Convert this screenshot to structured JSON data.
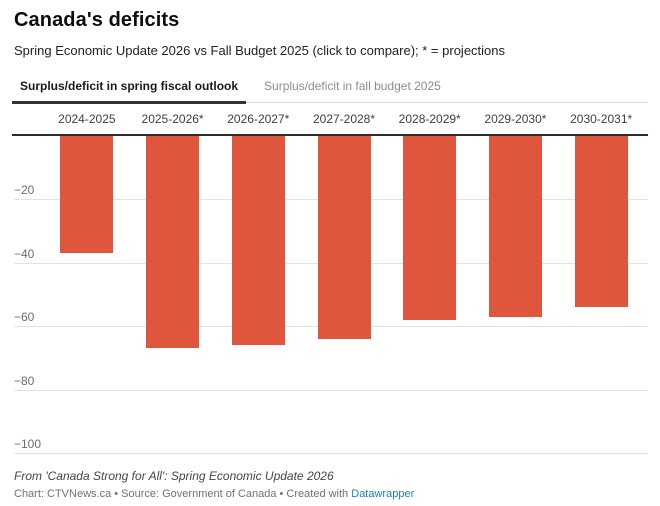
{
  "header": {
    "title": "Canada's deficits",
    "subtitle": "Spring Economic Update 2026 vs Fall Budget 2025 (click to compare); * = projections"
  },
  "tabs": [
    {
      "label": "Surplus/deficit in spring fiscal outlook",
      "active": true
    },
    {
      "label": "Surplus/deficit in fall budget 2025",
      "active": false
    }
  ],
  "chart_data": {
    "type": "bar",
    "title": "Canada's deficits",
    "subtitle": "Spring Economic Update 2026 vs Fall Budget 2025 (click to compare); * = projections",
    "series_label": "Surplus/deficit in spring fiscal outlook",
    "categories": [
      "2024-2025",
      "2025-2026*",
      "2026-2027*",
      "2027-2028*",
      "2028-2029*",
      "2029-2030*",
      "2030-2031*"
    ],
    "values": [
      -37,
      -67,
      -66,
      -64,
      -58,
      -57,
      -54
    ],
    "xlabel": "",
    "ylabel": "",
    "ylim": [
      -100,
      0
    ],
    "yticks": [
      -20,
      -40,
      -60,
      -80,
      -100
    ],
    "ytick_labels": [
      "−20",
      "−40",
      "−60",
      "−80",
      "−100"
    ],
    "grid": true,
    "legend_position": "none",
    "bar_color": "#e0563c",
    "axis_line_color": "#2d2d2d",
    "gridline_color": "#e2e2e2"
  },
  "footer": {
    "note": "From 'Canada Strong for All': Spring Economic Update 2026",
    "attribution_prefix": "Chart: CTVNews.ca • Source: Government of Canada • Created with ",
    "attribution_link": "Datawrapper",
    "link_color": "#1f83b4"
  }
}
